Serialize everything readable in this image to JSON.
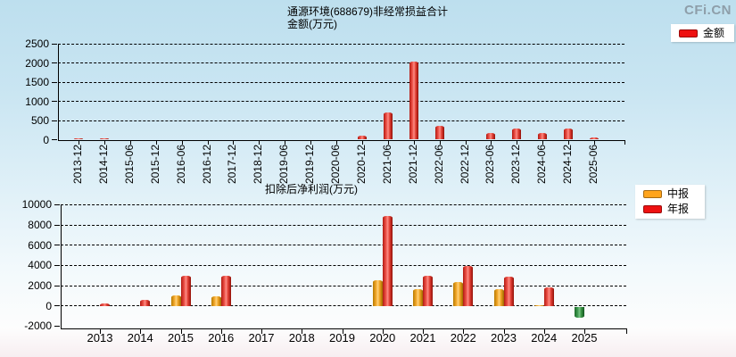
{
  "brand": "CFi.CN",
  "chart_data": [
    {
      "type": "bar",
      "title": "通源环境(688679)非经常损益合计",
      "subtitle": "金额(万元)",
      "legend_position": "top-right",
      "grid": "horizontal-dashed",
      "ylim": [
        0,
        2500
      ],
      "yticks": [
        0,
        500,
        1000,
        1500,
        2000,
        2500
      ],
      "categories": [
        "2013-12",
        "2014-12",
        "2015-06",
        "2015-12",
        "2016-06",
        "2016-12",
        "2017-12",
        "2018-12",
        "2019-06",
        "2019-12",
        "2020-06",
        "2020-12",
        "2021-06",
        "2021-12",
        "2022-06",
        "2022-12",
        "2023-06",
        "2023-12",
        "2024-06",
        "2024-12",
        "2025-06"
      ],
      "series": [
        {
          "name": "金额",
          "color": "#ee1111",
          "values": [
            30,
            30,
            null,
            null,
            null,
            null,
            null,
            null,
            null,
            null,
            null,
            110,
            720,
            2030,
            360,
            null,
            170,
            280,
            165,
            295,
            50
          ]
        }
      ]
    },
    {
      "type": "bar",
      "title": "扣除后净利润(万元)",
      "legend_position": "right",
      "grid": "horizontal-dashed",
      "ylim": [
        -2000,
        10000
      ],
      "yticks": [
        -2000,
        0,
        2000,
        4000,
        6000,
        8000,
        10000
      ],
      "categories": [
        "2013",
        "2014",
        "2015",
        "2016",
        "2017",
        "2018",
        "2019",
        "2020",
        "2021",
        "2022",
        "2023",
        "2024",
        "2025"
      ],
      "negative_color": "#2e9641",
      "series": [
        {
          "name": "中报",
          "color": "#ffa41c",
          "values": [
            null,
            null,
            1050,
            900,
            null,
            null,
            null,
            2500,
            1650,
            2350,
            1650,
            100,
            -1050
          ]
        },
        {
          "name": "年报",
          "color": "#ee1111",
          "values": [
            200,
            620,
            3000,
            3000,
            null,
            null,
            null,
            8850,
            3000,
            3900,
            2900,
            1800,
            null
          ]
        }
      ]
    }
  ]
}
